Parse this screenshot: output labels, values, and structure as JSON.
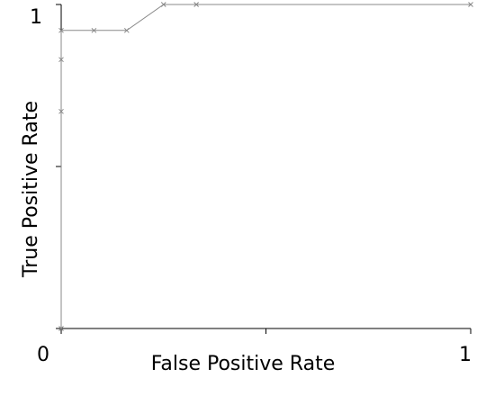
{
  "chart_data": {
    "type": "line",
    "x_label": "False Positive Rate",
    "y_label": "True Positive Rate",
    "x": [
      0,
      0,
      0,
      0,
      0.08,
      0.16,
      0.25,
      0.33,
      1
    ],
    "series": [
      {
        "color": "#888888",
        "values": [
          0,
          0.67,
          0.83,
          0.92,
          0.92,
          0.92,
          1,
          1,
          1
        ]
      }
    ],
    "xlim": [
      0,
      1
    ],
    "ylim": [
      0,
      1
    ],
    "xticks": [
      0,
      {
        "value": 0.5,
        "label": null
      },
      1
    ],
    "yticks": [
      {
        "value": 0,
        "label": null
      },
      {
        "value": 0.5,
        "label": null
      },
      1
    ]
  }
}
